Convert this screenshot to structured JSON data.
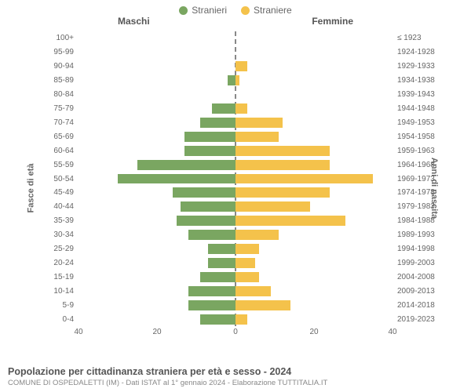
{
  "legend": {
    "male": {
      "label": "Stranieri",
      "color": "#7aa661"
    },
    "female": {
      "label": "Straniere",
      "color": "#f4c24b"
    }
  },
  "headers": {
    "left": "Maschi",
    "right": "Femmine"
  },
  "axis_titles": {
    "left": "Fasce di età",
    "right": "Anni di nascita"
  },
  "chart": {
    "type": "population-pyramid",
    "xmax": 40,
    "xticks_left": [
      40,
      20,
      0
    ],
    "xticks_right": [
      0,
      20,
      40
    ],
    "bar_color_left": "#7aa661",
    "bar_color_right": "#f4c24b",
    "grid_color": "#e8e8e8",
    "centerline_color": "#888888",
    "background_color": "#ffffff",
    "label_fontsize": 10,
    "rows": [
      {
        "age": "100+",
        "birth": "≤ 1923",
        "m": 0,
        "f": 0
      },
      {
        "age": "95-99",
        "birth": "1924-1928",
        "m": 0,
        "f": 0
      },
      {
        "age": "90-94",
        "birth": "1929-1933",
        "m": 0,
        "f": 3
      },
      {
        "age": "85-89",
        "birth": "1934-1938",
        "m": 2,
        "f": 1
      },
      {
        "age": "80-84",
        "birth": "1939-1943",
        "m": 0,
        "f": 0
      },
      {
        "age": "75-79",
        "birth": "1944-1948",
        "m": 6,
        "f": 3
      },
      {
        "age": "70-74",
        "birth": "1949-1953",
        "m": 9,
        "f": 12
      },
      {
        "age": "65-69",
        "birth": "1954-1958",
        "m": 13,
        "f": 11
      },
      {
        "age": "60-64",
        "birth": "1959-1963",
        "m": 13,
        "f": 24
      },
      {
        "age": "55-59",
        "birth": "1964-1968",
        "m": 25,
        "f": 24
      },
      {
        "age": "50-54",
        "birth": "1969-1973",
        "m": 30,
        "f": 35
      },
      {
        "age": "45-49",
        "birth": "1974-1978",
        "m": 16,
        "f": 24
      },
      {
        "age": "40-44",
        "birth": "1979-1983",
        "m": 14,
        "f": 19
      },
      {
        "age": "35-39",
        "birth": "1984-1988",
        "m": 15,
        "f": 28
      },
      {
        "age": "30-34",
        "birth": "1989-1993",
        "m": 12,
        "f": 11
      },
      {
        "age": "25-29",
        "birth": "1994-1998",
        "m": 7,
        "f": 6
      },
      {
        "age": "20-24",
        "birth": "1999-2003",
        "m": 7,
        "f": 5
      },
      {
        "age": "15-19",
        "birth": "2004-2008",
        "m": 9,
        "f": 6
      },
      {
        "age": "10-14",
        "birth": "2009-2013",
        "m": 12,
        "f": 9
      },
      {
        "age": "5-9",
        "birth": "2014-2018",
        "m": 12,
        "f": 14
      },
      {
        "age": "0-4",
        "birth": "2019-2023",
        "m": 9,
        "f": 3
      }
    ]
  },
  "footer": {
    "title": "Popolazione per cittadinanza straniera per età e sesso - 2024",
    "subtitle": "COMUNE DI OSPEDALETTI (IM) - Dati ISTAT al 1° gennaio 2024 - Elaborazione TUTTITALIA.IT"
  }
}
